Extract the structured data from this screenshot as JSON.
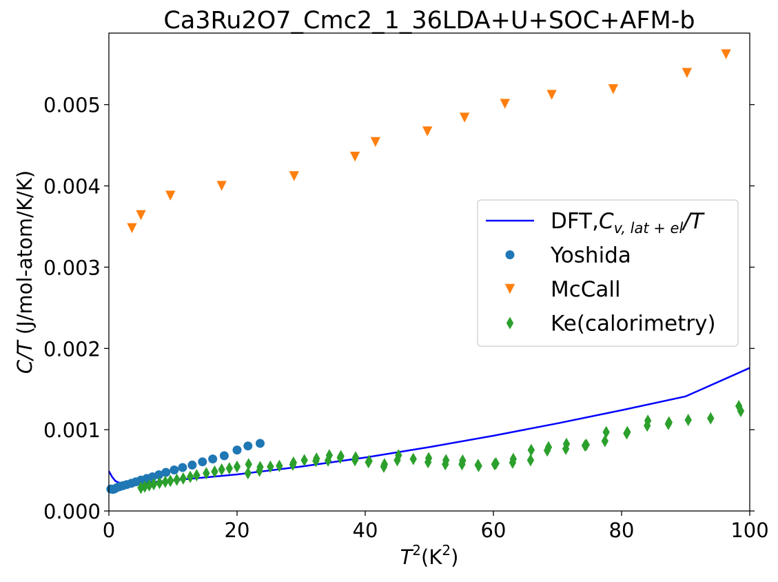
{
  "chart_data": {
    "type": "scatter",
    "title": "Ca3Ru2O7_Cmc2_1_36LDA+U+SOC+AFM-b",
    "xlabel": {
      "base": "T",
      "sup": "2",
      "unit": "(K",
      "unit_sup": "2",
      "close": ")"
    },
    "ylabel": {
      "italic": "C/T",
      "rest": " (J/mol-atom/K/K)"
    },
    "xlim": [
      0,
      100
    ],
    "ylim": [
      0,
      0.00588
    ],
    "xticks": [
      0,
      20,
      40,
      60,
      80,
      100
    ],
    "xtick_labels": [
      "0",
      "20",
      "40",
      "60",
      "80",
      "100"
    ],
    "yticks": [
      0,
      0.001,
      0.002,
      0.003,
      0.004,
      0.005
    ],
    "ytick_labels": [
      "0.000",
      "0.001",
      "0.002",
      "0.003",
      "0.004",
      "0.005"
    ],
    "grid": false,
    "legend_position": "center-right",
    "series": [
      {
        "name": "DFT,Cv,lat+el/T",
        "legend_label": {
          "prefix": "DFT,",
          "italic": "C",
          "sub": "v, lat + el",
          "suffix": "/T"
        },
        "kind": "line",
        "color": "#0000ff",
        "x": [
          0,
          0.5,
          1,
          1.5,
          2,
          3,
          4,
          6,
          8,
          10,
          15,
          20,
          30,
          40,
          50,
          60,
          70,
          80,
          90,
          100
        ],
        "y": [
          0.00049,
          0.00042,
          0.00037,
          0.00035,
          0.000345,
          0.00034,
          0.000343,
          0.00035,
          0.000363,
          0.000377,
          0.000413,
          0.00045,
          0.000546,
          0.000658,
          0.000786,
          0.000926,
          0.001078,
          0.00124,
          0.00141,
          0.00176
        ]
      },
      {
        "name": "Yoshida",
        "kind": "scatter",
        "marker": "circle",
        "color": "#1f77b4",
        "x": [
          0.3,
          0.6,
          0.9,
          1.3,
          1.7,
          2.2,
          2.8,
          3.5,
          4.2,
          5.0,
          5.9,
          6.8,
          7.8,
          8.9,
          10.2,
          11.5,
          13.0,
          14.6,
          16.2,
          18.0,
          20.0,
          21.7,
          23.6
        ],
        "y": [
          0.00027,
          0.000265,
          0.000272,
          0.00029,
          0.0003,
          0.000312,
          0.000325,
          0.00034,
          0.000358,
          0.00038,
          0.0004,
          0.00042,
          0.000445,
          0.000475,
          0.000505,
          0.000535,
          0.000565,
          0.000605,
          0.00064,
          0.00068,
          0.00075,
          0.0008,
          0.000832
        ]
      },
      {
        "name": "McCall",
        "kind": "scatter",
        "marker": "triangle-down",
        "color": "#ff7f0e",
        "x": [
          3.6,
          5.0,
          9.6,
          17.6,
          28.9,
          38.4,
          41.6,
          49.7,
          55.5,
          61.8,
          69.1,
          78.7,
          90.2,
          96.3
        ],
        "y": [
          0.00348,
          0.00364,
          0.00388,
          0.004,
          0.00412,
          0.00436,
          0.00454,
          0.00467,
          0.00484,
          0.00501,
          0.00512,
          0.00519,
          0.00539,
          0.00562
        ]
      },
      {
        "name": "Ke(calorimetry)",
        "kind": "scatter",
        "marker": "thin-diamond",
        "color": "#2ca02c",
        "x": [
          5.0,
          5.6,
          6.3,
          7.0,
          7.9,
          8.8,
          9.6,
          10.6,
          11.6,
          12.7,
          13.7,
          15.2,
          16.5,
          17.6,
          18.8,
          20.0,
          21.7,
          21.8,
          23.5,
          23.6,
          25.2,
          26.6,
          28.7,
          28.8,
          30.5,
          32.3,
          32.4,
          34.2,
          34.4,
          36.1,
          36.2,
          38.4,
          38.5,
          40.5,
          40.6,
          42.9,
          43.0,
          45.0,
          45.2,
          47.5,
          49.8,
          49.9,
          52.5,
          52.6,
          55.1,
          55.2,
          57.6,
          57.7,
          60.2,
          60.4,
          63.0,
          63.1,
          65.8,
          65.9,
          68.4,
          68.6,
          71.3,
          71.4,
          74.3,
          74.5,
          77.4,
          77.6,
          80.8,
          80.9,
          84.0,
          84.1,
          87.3,
          87.4,
          90.4,
          93.9,
          98.3,
          98.6
        ],
        "y": [
          0.000285,
          0.0003,
          0.000315,
          0.00033,
          0.000345,
          0.00036,
          0.00037,
          0.000385,
          0.0004,
          0.00042,
          0.00044,
          0.000465,
          0.000485,
          0.00051,
          0.000525,
          0.000545,
          0.000465,
          0.000575,
          0.000495,
          0.00054,
          0.000545,
          0.000555,
          0.00057,
          0.000595,
          0.000625,
          0.000615,
          0.000645,
          0.00062,
          0.000685,
          0.000655,
          0.000675,
          0.000625,
          0.00066,
          0.0006,
          0.000615,
          0.000545,
          0.000575,
          0.000625,
          0.000685,
          0.00064,
          0.0006,
          0.00065,
          0.000575,
          0.000625,
          0.000575,
          0.00062,
          0.000565,
          0.000555,
          0.000575,
          0.000585,
          0.000595,
          0.00064,
          0.000625,
          0.00075,
          0.000745,
          0.000785,
          0.000765,
          0.000825,
          0.000805,
          0.000815,
          0.00086,
          0.00097,
          0.000955,
          0.00097,
          0.00105,
          0.00111,
          0.00107,
          0.00109,
          0.00112,
          0.00114,
          0.00129,
          0.00123
        ]
      }
    ]
  }
}
